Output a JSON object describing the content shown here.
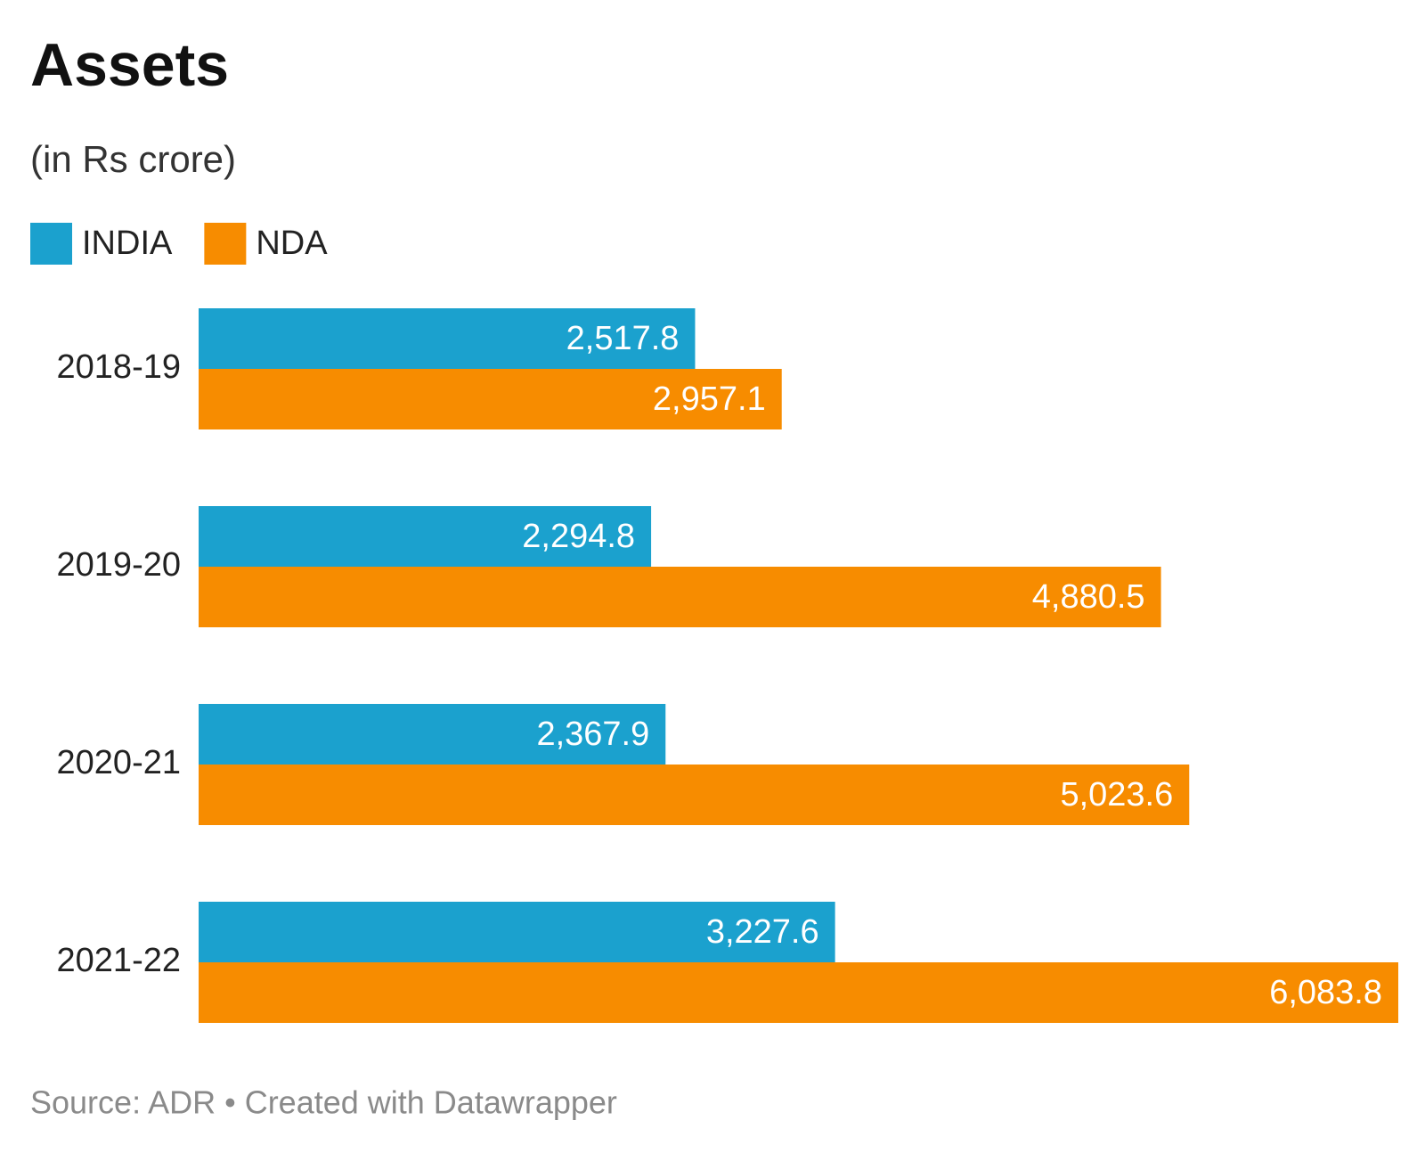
{
  "chart_data": {
    "type": "bar",
    "orientation": "horizontal",
    "title": "Assets",
    "subtitle": "(in Rs crore)",
    "categories": [
      "2018-19",
      "2019-20",
      "2020-21",
      "2021-22"
    ],
    "series": [
      {
        "name": "INDIA",
        "color": "#1ba1ce",
        "values": [
          2517.8,
          2294.8,
          2367.9,
          3227.6
        ],
        "value_labels": [
          "2,517.8",
          "2,294.8",
          "2,367.9",
          "3,227.6"
        ]
      },
      {
        "name": "NDA",
        "color": "#f78c00",
        "values": [
          2957.1,
          4880.5,
          5023.6,
          6083.8
        ],
        "value_labels": [
          "2,957.1",
          "4,880.5",
          "5,023.6",
          "6,083.8"
        ]
      }
    ],
    "source": "Source: ADR • Created with Datawrapper"
  }
}
